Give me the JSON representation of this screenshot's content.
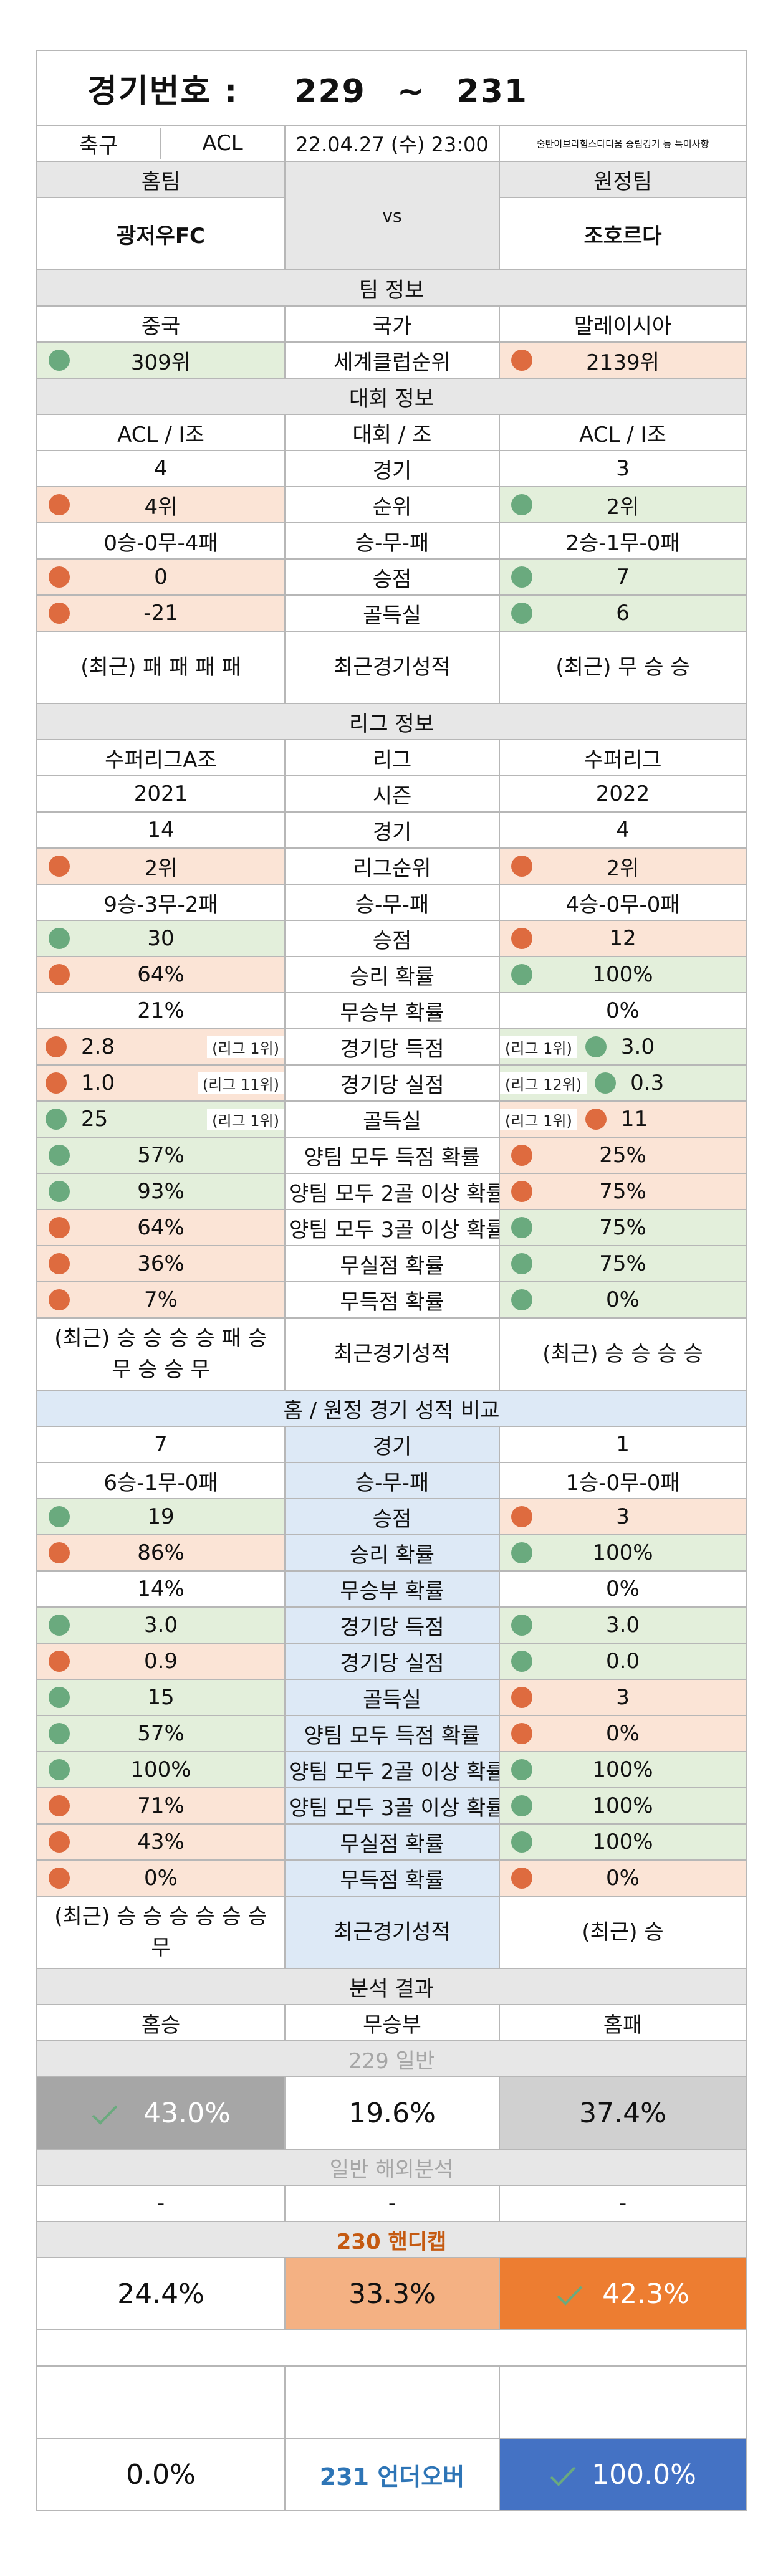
{
  "header": {
    "label": "경기번호 :",
    "from": "229",
    "sep": "~",
    "to": "231"
  },
  "match": {
    "sport": "축구",
    "league": "ACL",
    "datetime": "22.04.27 (수) 23:00",
    "note": "술탄이브라힘스타디움 중립경기 등 특이사항",
    "home_label": "홈팀",
    "away_label": "원정팀",
    "home": "광저우FC",
    "away": "조호르다",
    "vs": "vs"
  },
  "team_info": {
    "title": "팀 정보",
    "rows": [
      {
        "label": "국가",
        "home": "중국",
        "away": "말레이시아"
      },
      {
        "label": "세계클럽순위",
        "home": "309위",
        "away": "2139위",
        "home_dot": "green",
        "away_dot": "orange"
      }
    ]
  },
  "cup_info": {
    "title": "대회 정보",
    "rows": [
      {
        "label": "대회 / 조",
        "home": "ACL / I조",
        "away": "ACL / I조"
      },
      {
        "label": "경기",
        "home": "4",
        "away": "3"
      },
      {
        "label": "순위",
        "home": "4위",
        "away": "2위",
        "home_dot": "orange",
        "away_dot": "green"
      },
      {
        "label": "승-무-패",
        "home": "0승-0무-4패",
        "away": "2승-1무-0패"
      },
      {
        "label": "승점",
        "home": "0",
        "away": "7",
        "home_dot": "orange",
        "away_dot": "green"
      },
      {
        "label": "골득실",
        "home": "-21",
        "away": "6",
        "home_dot": "orange",
        "away_dot": "green"
      },
      {
        "label": "최근경기성적",
        "home": "(최근) 패 패 패 패",
        "away": "(최근) 무 승 승",
        "tall": true
      }
    ]
  },
  "league_info": {
    "title": "리그 정보",
    "rows": [
      {
        "label": "리그",
        "home": "수퍼리그A조",
        "away": "수퍼리그"
      },
      {
        "label": "시즌",
        "home": "2021",
        "away": "2022"
      },
      {
        "label": "경기",
        "home": "14",
        "away": "4"
      },
      {
        "label": "리그순위",
        "home": "2위",
        "away": "2위",
        "home_dot": "orange",
        "away_dot": "orange"
      },
      {
        "label": "승-무-패",
        "home": "9승-3무-2패",
        "away": "4승-0무-0패"
      },
      {
        "label": "승점",
        "home": "30",
        "away": "12",
        "home_dot": "green",
        "away_dot": "orange"
      },
      {
        "label": "승리 확률",
        "home": "64%",
        "away": "100%",
        "home_dot": "orange",
        "away_dot": "green"
      },
      {
        "label": "무승부 확률",
        "home": "21%",
        "away": "0%"
      },
      {
        "label": "경기당 득점",
        "home": "2.8",
        "away": "3.0",
        "home_dot": "orange",
        "away_dot": "green",
        "home_rank": "(리그 1위)",
        "away_rank": "(리그 1위)"
      },
      {
        "label": "경기당 실점",
        "home": "1.0",
        "away": "0.3",
        "home_dot": "orange",
        "away_dot": "green",
        "home_rank": "(리그 11위)",
        "away_rank": "(리그 12위)"
      },
      {
        "label": "골득실",
        "home": "25",
        "away": "11",
        "home_dot": "green",
        "away_dot": "orange",
        "home_rank": "(리그 1위)",
        "away_rank": "(리그 1위)"
      },
      {
        "label": "양팀 모두 득점 확률",
        "home": "57%",
        "away": "25%",
        "home_dot": "green",
        "away_dot": "orange"
      },
      {
        "label": "양팀 모두 2골 이상 확률",
        "home": "93%",
        "away": "75%",
        "home_dot": "green",
        "away_dot": "orange"
      },
      {
        "label": "양팀 모두 3골 이상 확률",
        "home": "64%",
        "away": "75%",
        "home_dot": "orange",
        "away_dot": "green"
      },
      {
        "label": "무실점 확률",
        "home": "36%",
        "away": "75%",
        "home_dot": "orange",
        "away_dot": "green"
      },
      {
        "label": "무득점 확률",
        "home": "7%",
        "away": "0%",
        "home_dot": "orange",
        "away_dot": "green"
      },
      {
        "label": "최근경기성적",
        "home": "(최근) 승 승 승 승 패 승 무 승 승 무",
        "away": "(최근) 승 승 승 승",
        "tall": true
      }
    ]
  },
  "home_away": {
    "title": "홈 / 원정 경기 성적 비교",
    "rows": [
      {
        "label": "경기",
        "home": "7",
        "away": "1"
      },
      {
        "label": "승-무-패",
        "home": "6승-1무-0패",
        "away": "1승-0무-0패"
      },
      {
        "label": "승점",
        "home": "19",
        "away": "3",
        "home_dot": "green",
        "away_dot": "orange"
      },
      {
        "label": "승리 확률",
        "home": "86%",
        "away": "100%",
        "home_dot": "orange",
        "away_dot": "green"
      },
      {
        "label": "무승부 확률",
        "home": "14%",
        "away": "0%"
      },
      {
        "label": "경기당 득점",
        "home": "3.0",
        "away": "3.0",
        "home_dot": "green",
        "away_dot": "green"
      },
      {
        "label": "경기당 실점",
        "home": "0.9",
        "away": "0.0",
        "home_dot": "orange",
        "away_dot": "green"
      },
      {
        "label": "골득실",
        "home": "15",
        "away": "3",
        "home_dot": "green",
        "away_dot": "orange"
      },
      {
        "label": "양팀 모두 득점 확률",
        "home": "57%",
        "away": "0%",
        "home_dot": "green",
        "away_dot": "orange"
      },
      {
        "label": "양팀 모두 2골 이상 확률",
        "home": "100%",
        "away": "100%",
        "home_dot": "green",
        "away_dot": "green"
      },
      {
        "label": "양팀 모두 3골 이상 확률",
        "home": "71%",
        "away": "100%",
        "home_dot": "orange",
        "away_dot": "green"
      },
      {
        "label": "무실점 확률",
        "home": "43%",
        "away": "100%",
        "home_dot": "orange",
        "away_dot": "green"
      },
      {
        "label": "무득점 확률",
        "home": "0%",
        "away": "0%",
        "home_dot": "orange",
        "away_dot": "orange"
      },
      {
        "label": "최근경기성적",
        "home": "(최근) 승 승 승 승 승 승 무",
        "away": "(최근) 승",
        "tall": true
      }
    ]
  },
  "analysis": {
    "title": "분석 결과",
    "cols": [
      "홈승",
      "무승부",
      "홈패"
    ],
    "g229": {
      "label": "229 일반",
      "home": "43.0%",
      "draw": "19.6%",
      "away": "37.4%"
    },
    "overseas": {
      "label": "일반 해외분석",
      "home": "-",
      "draw": "-",
      "away": "-"
    },
    "g230": {
      "label": "230 핸디캡",
      "home": "24.4%",
      "draw": "33.3%",
      "away": "42.3%"
    },
    "g231": {
      "label": "231 언더오버",
      "under": "0.0%",
      "over": "100.0%"
    }
  },
  "colors": {
    "green_dot": "#6aaa7e",
    "orange_dot": "#de6b3f",
    "green_bg": "#e3efdb",
    "orange_bg": "#fbe4d6",
    "gray_bg": "#e7e7e7",
    "blue_bg": "#dde9f6",
    "accent_orange": "#ed7d31",
    "accent_blue": "#4472c4"
  }
}
